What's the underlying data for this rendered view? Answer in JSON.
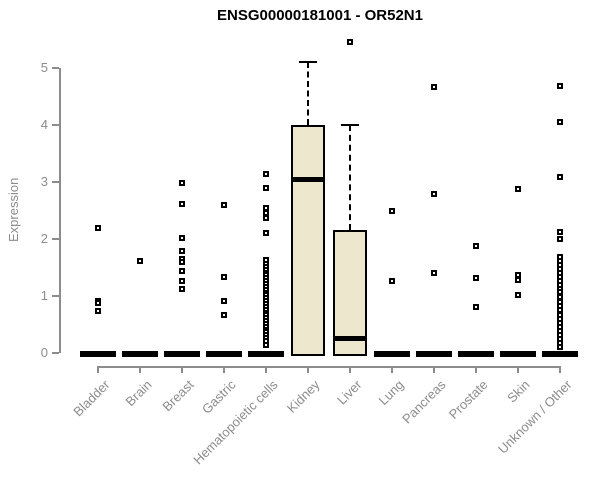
{
  "chart_data": {
    "type": "boxplot",
    "title": "ENSG00000181001 - OR52N1",
    "xlabel": "",
    "ylabel": "Expression",
    "ylim": [
      0,
      5.5
    ],
    "yticks": [
      0,
      1,
      2,
      3,
      4,
      5
    ],
    "grid": false,
    "legend": "none",
    "categories": [
      "Bladder",
      "Brain",
      "Breast",
      "Gastric",
      "Hematopoietic cells",
      "Kidney",
      "Liver",
      "Lung",
      "Pancreas",
      "Prostate",
      "Skin",
      "Unknown / Other"
    ],
    "boxes": [
      {
        "category": "Bladder",
        "q1": 0,
        "median": 0,
        "q3": 0,
        "whisker_low": 0,
        "whisker_high": 0,
        "outliers": [
          2.2,
          0.92,
          0.87,
          0.73
        ]
      },
      {
        "category": "Brain",
        "q1": 0,
        "median": 0,
        "q3": 0,
        "whisker_low": 0,
        "whisker_high": 0,
        "outliers": [
          1.62
        ]
      },
      {
        "category": "Breast",
        "q1": 0,
        "median": 0,
        "q3": 0,
        "whisker_low": 0,
        "whisker_high": 0,
        "outliers": [
          2.98,
          2.61,
          2.02,
          1.79,
          1.65,
          1.6,
          1.43,
          1.27,
          1.12
        ]
      },
      {
        "category": "Gastric",
        "q1": 0,
        "median": 0,
        "q3": 0,
        "whisker_low": 0,
        "whisker_high": 0,
        "outliers": [
          2.6,
          1.34,
          0.92,
          0.67
        ]
      },
      {
        "category": "Hematopoietic cells",
        "q1": 0,
        "median": 0,
        "q3": 0,
        "whisker_low": 0,
        "whisker_high": 0,
        "outliers": [
          3.14,
          2.89,
          2.54,
          2.46,
          2.37,
          2.11,
          1.63,
          1.57,
          1.51,
          1.46,
          1.41,
          1.36,
          1.31,
          1.26,
          1.21,
          1.16,
          1.11,
          1.06,
          1.01,
          0.96,
          0.91,
          0.86,
          0.81,
          0.76,
          0.71,
          0.66,
          0.61,
          0.56,
          0.51,
          0.46,
          0.41,
          0.36,
          0.31,
          0.26,
          0.21,
          0.14
        ]
      },
      {
        "category": "Kidney",
        "q1": 0,
        "median": 3.05,
        "q3": 4.0,
        "whisker_low": 0,
        "whisker_high": 5.1,
        "outliers": []
      },
      {
        "category": "Liver",
        "q1": 0,
        "median": 0.25,
        "q3": 2.15,
        "whisker_low": 0,
        "whisker_high": 4.0,
        "outliers": [
          5.45
        ]
      },
      {
        "category": "Lung",
        "q1": 0,
        "median": 0,
        "q3": 0,
        "whisker_low": 0,
        "whisker_high": 0,
        "outliers": [
          2.5,
          1.26
        ]
      },
      {
        "category": "Pancreas",
        "q1": 0,
        "median": 0,
        "q3": 0,
        "whisker_low": 0,
        "whisker_high": 0,
        "outliers": [
          4.67,
          2.79,
          1.4
        ]
      },
      {
        "category": "Prostate",
        "q1": 0,
        "median": 0,
        "q3": 0,
        "whisker_low": 0,
        "whisker_high": 0,
        "outliers": [
          1.88,
          1.31,
          0.81
        ]
      },
      {
        "category": "Skin",
        "q1": 0,
        "median": 0,
        "q3": 0,
        "whisker_low": 0,
        "whisker_high": 0,
        "outliers": [
          2.87,
          1.37,
          1.28,
          1.02
        ]
      },
      {
        "category": "Unknown / Other",
        "q1": 0,
        "median": 0,
        "q3": 0,
        "whisker_low": 0,
        "whisker_high": 0,
        "outliers": [
          4.68,
          4.05,
          3.09,
          2.12,
          2.0,
          1.68,
          1.61,
          1.54,
          1.47,
          1.4,
          1.33,
          1.26,
          1.19,
          1.12,
          1.07,
          0.98,
          0.9,
          0.83,
          0.76,
          0.67,
          0.6,
          0.53,
          0.46,
          0.39,
          0.32,
          0.25,
          0.18,
          0.11
        ]
      }
    ],
    "colors": {
      "box_fill": "#EDE8CD",
      "box_border": "#000000",
      "median": "#000000",
      "axis": "#8C8C8C",
      "tick_label": "#8C8C8C",
      "title": "#000000",
      "outlier_fill": "#FFFFFF",
      "background": "#FFFFFF"
    }
  }
}
